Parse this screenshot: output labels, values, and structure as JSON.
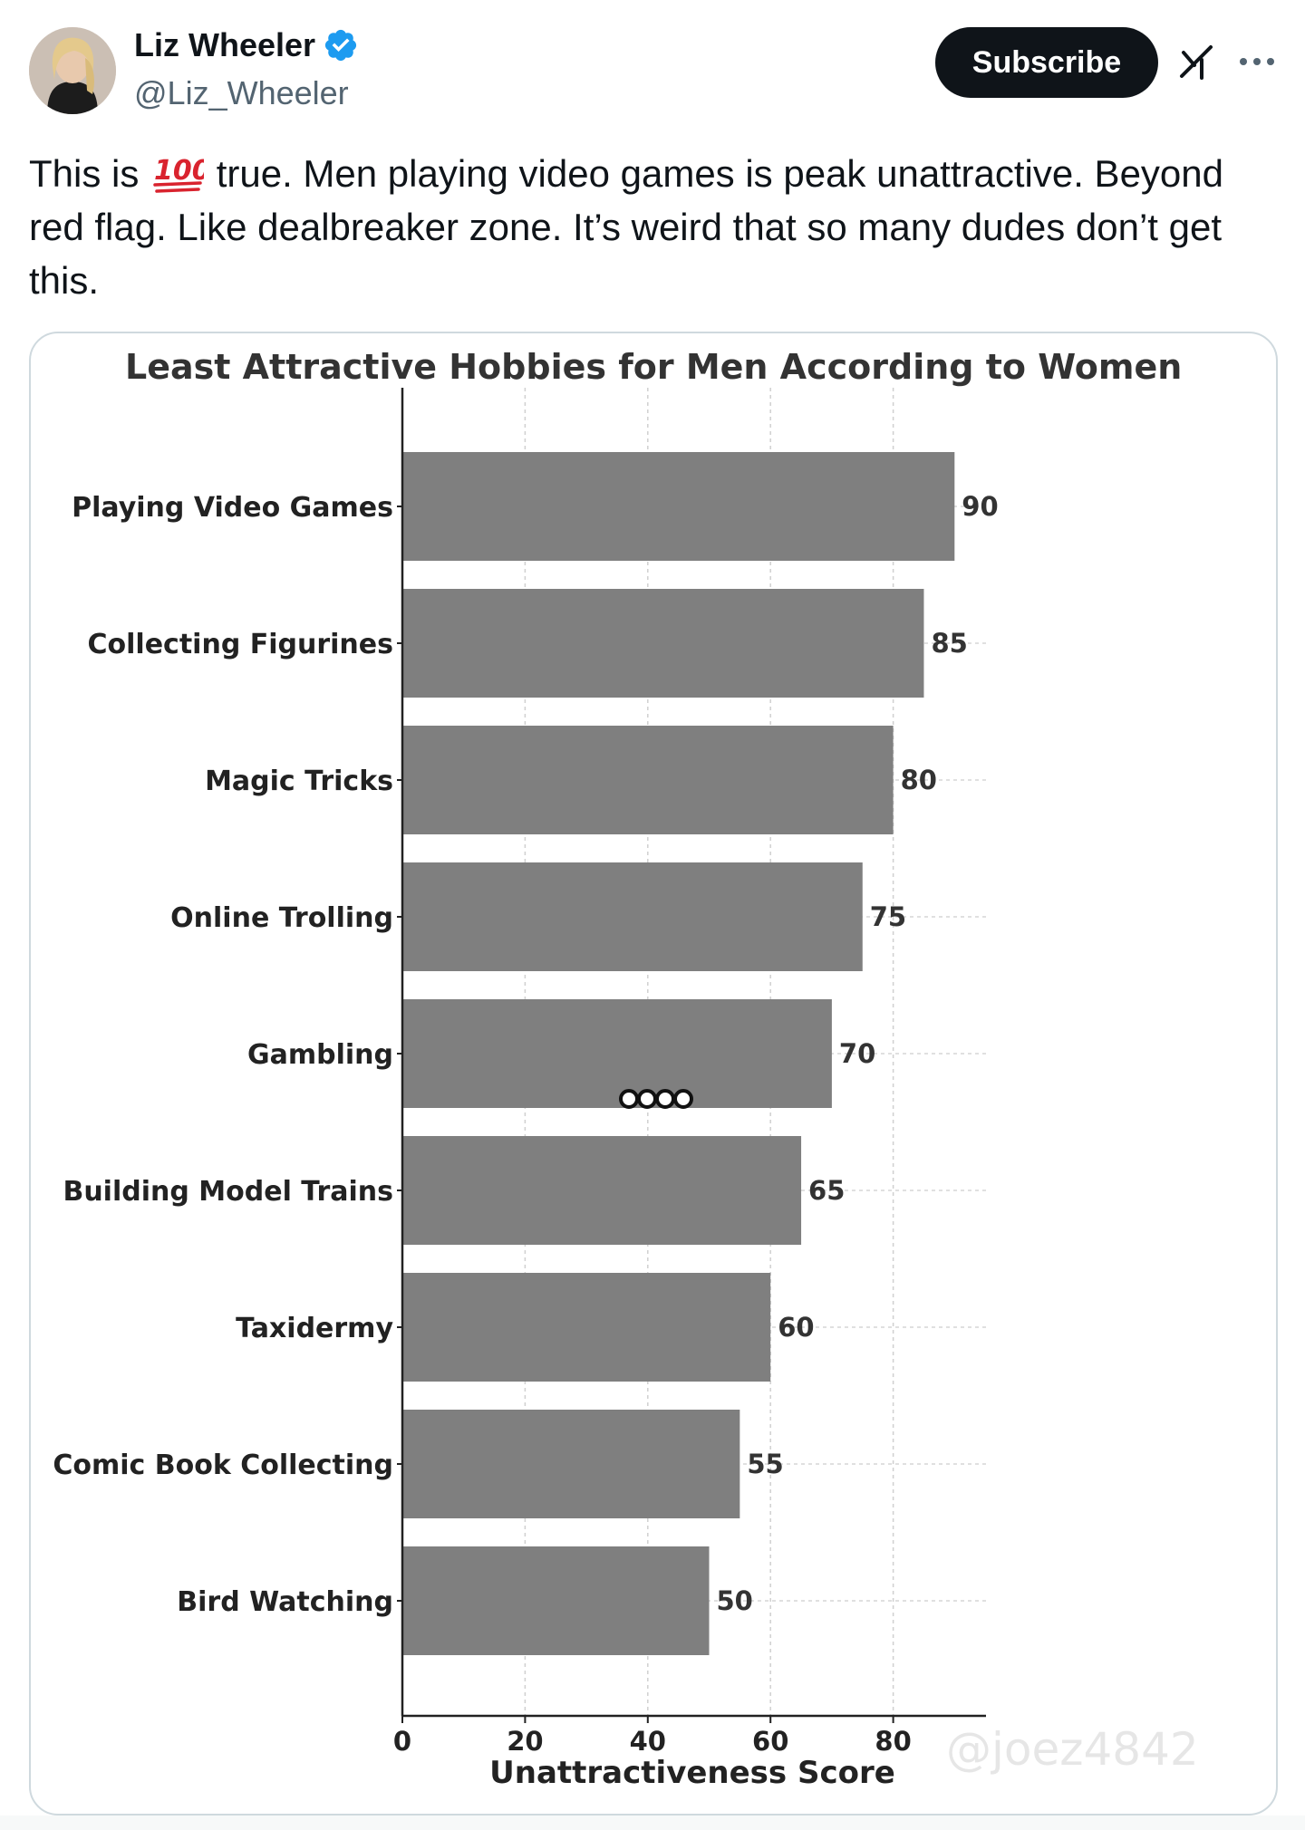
{
  "post": {
    "author": {
      "display_name": "Liz Wheeler",
      "handle": "@Liz_Wheeler",
      "verified": true,
      "avatar_icon": "profile-photo"
    },
    "subscribe_label": "Subscribe",
    "text_before_emoji": "This is",
    "emoji": "💯",
    "text_after_emoji": "true. Men playing video games is peak unattractive. Beyond red flag. Like dealbreaker zone. It’s weird that so many dudes don’t get this.",
    "icons": {
      "verified": "verified-badge-icon",
      "grok": "grok-icon",
      "more": "more-options-icon"
    },
    "colors": {
      "verified_blue": "#1d9bf0",
      "button_black": "#0f1419",
      "handle_gray": "#536471"
    }
  },
  "chart_data": {
    "type": "bar",
    "orientation": "horizontal",
    "title": "Least Attractive Hobbies for Men According to Women",
    "xlabel": "Unattractiveness Score",
    "ylabel": "",
    "categories": [
      "Playing Video Games",
      "Collecting Figurines",
      "Magic Tricks",
      "Online Trolling",
      "Gambling",
      "Building Model Trains",
      "Taxidermy",
      "Comic Book Collecting",
      "Bird Watching"
    ],
    "values": [
      90,
      85,
      80,
      75,
      70,
      65,
      60,
      55,
      50
    ],
    "data_labels": [
      "90",
      "85",
      "80",
      "75",
      "70",
      "65",
      "60",
      "55",
      "50"
    ],
    "xlim": [
      0,
      95
    ],
    "xticks": [
      0,
      20,
      40,
      60,
      80
    ],
    "xtick_labels": [
      "0",
      "20",
      "40",
      "60",
      "80"
    ],
    "grid": true,
    "bar_color": "#7f7f7f",
    "watermark": "@joez4842"
  }
}
